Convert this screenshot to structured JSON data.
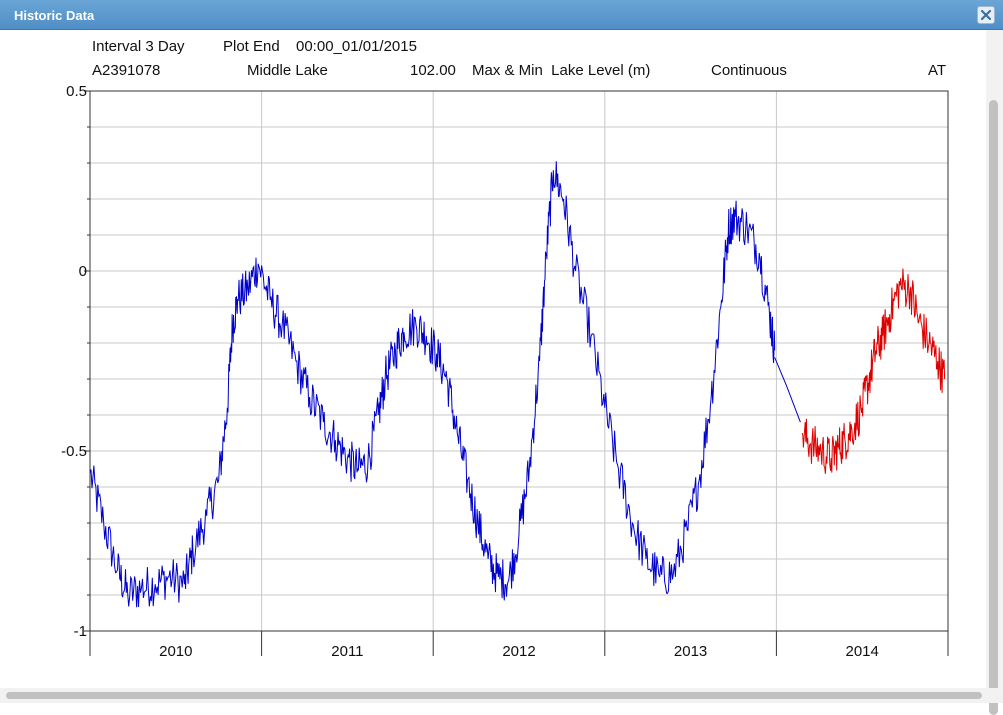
{
  "window": {
    "title": "Historic Data"
  },
  "header": {
    "interval": "Interval 3 Day",
    "plot_end_label": "Plot End",
    "plot_end_value": "00:00_01/01/2015",
    "site_id": "A2391078",
    "site_name": "Middle Lake",
    "variable_code": "102.00",
    "variable_desc": "Max & Min  Lake Level (m)",
    "data_type": "Continuous",
    "station_code": "AT"
  },
  "icons": {
    "close": "close-icon"
  },
  "chart_data": {
    "type": "line",
    "title": "",
    "xlabel": "",
    "ylabel": "",
    "ylim": [
      -1,
      0.5
    ],
    "y_ticks": [
      "0.5",
      "0",
      "-0.5",
      "-1"
    ],
    "y_tick_values": [
      0.5,
      0,
      -0.5,
      -1
    ],
    "x_range": [
      2009.5,
      2014.5
    ],
    "x_ticks": [
      "2010",
      "2011",
      "2012",
      "2013",
      "2014"
    ],
    "x_tick_positions": [
      2010,
      2011,
      2012,
      2013,
      2014
    ],
    "year_boundaries": [
      2010.5,
      2011.5,
      2012.5,
      2013.5
    ],
    "grid": true,
    "series": [
      {
        "color": "#0000cc",
        "x": [
          2009.5,
          2009.58,
          2009.66,
          2009.72,
          2009.8,
          2009.88,
          2009.96,
          2010.05,
          2010.1,
          2010.18,
          2010.25,
          2010.3,
          2010.33,
          2010.36,
          2010.42,
          2010.48,
          2010.55,
          2010.62,
          2010.7,
          2010.78,
          2010.86,
          2010.93,
          2011.0,
          2011.06,
          2011.12,
          2011.18,
          2011.22,
          2011.28,
          2011.33,
          2011.4,
          2011.46,
          2011.52,
          2011.58,
          2011.64,
          2011.7,
          2011.76,
          2011.82,
          2011.88,
          2011.94,
          2012.0,
          2012.06,
          2012.12,
          2012.16,
          2012.2,
          2012.26,
          2012.33,
          2012.42,
          2012.5,
          2012.58,
          2012.66,
          2012.74,
          2012.82,
          2012.9,
          2012.98,
          2013.05,
          2013.12,
          2013.18,
          2013.22,
          2013.26,
          2013.33,
          2013.4,
          2013.46,
          2013.49
        ],
        "y": [
          -0.56,
          -0.7,
          -0.83,
          -0.9,
          -0.88,
          -0.87,
          -0.85,
          -0.87,
          -0.78,
          -0.68,
          -0.58,
          -0.38,
          -0.15,
          -0.08,
          -0.05,
          0.02,
          -0.08,
          -0.15,
          -0.25,
          -0.35,
          -0.42,
          -0.47,
          -0.52,
          -0.55,
          -0.53,
          -0.4,
          -0.3,
          -0.22,
          -0.17,
          -0.15,
          -0.18,
          -0.23,
          -0.3,
          -0.45,
          -0.58,
          -0.7,
          -0.8,
          -0.85,
          -0.86,
          -0.73,
          -0.55,
          -0.25,
          0.05,
          0.28,
          0.2,
          0.0,
          -0.18,
          -0.38,
          -0.55,
          -0.7,
          -0.8,
          -0.85,
          -0.84,
          -0.72,
          -0.58,
          -0.35,
          -0.08,
          0.12,
          0.15,
          0.12,
          0.05,
          -0.12,
          -0.22
        ]
      },
      {
        "color": "#0000cc",
        "x": [
          2013.49,
          2013.56,
          2013.64
        ],
        "y": [
          -0.24,
          -0.32,
          -0.42
        ]
      },
      {
        "color": "#dd0000",
        "x": [
          2013.65,
          2013.7,
          2013.76,
          2013.82,
          2013.86,
          2013.9,
          2013.94,
          2014.0,
          2014.04,
          2014.08,
          2014.12,
          2014.16,
          2014.22,
          2014.28,
          2014.33,
          2014.39,
          2014.44,
          2014.48
        ],
        "y": [
          -0.45,
          -0.48,
          -0.5,
          -0.52,
          -0.49,
          -0.47,
          -0.44,
          -0.38,
          -0.3,
          -0.22,
          -0.18,
          -0.12,
          -0.04,
          -0.05,
          -0.14,
          -0.2,
          -0.25,
          -0.3
        ]
      }
    ]
  }
}
